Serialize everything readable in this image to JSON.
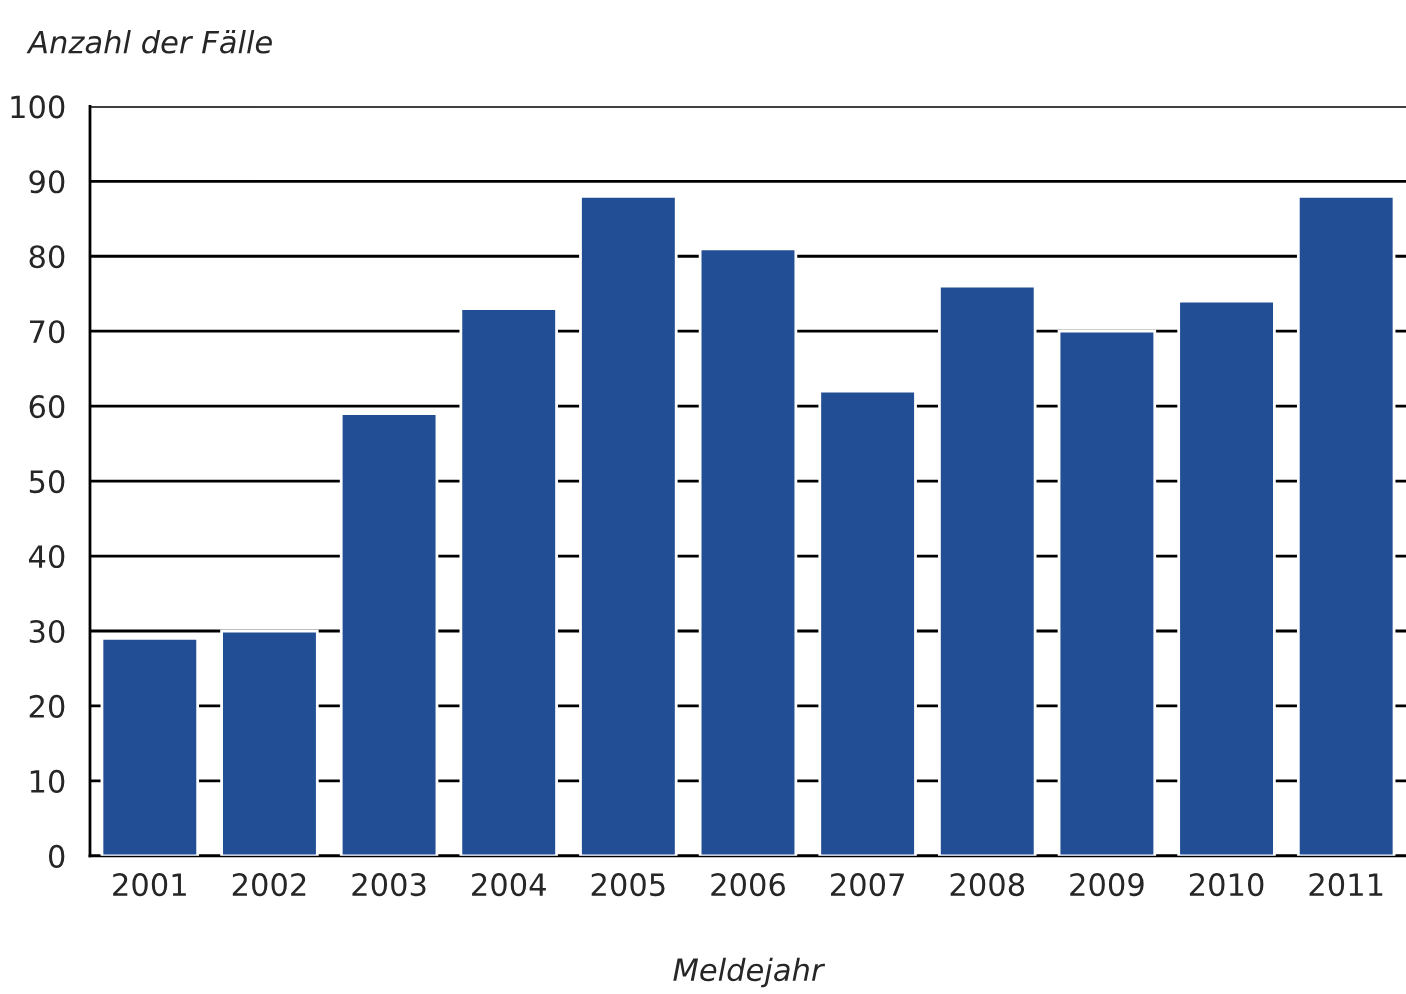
{
  "chart_data": {
    "type": "bar",
    "ylabel": "Anzahl der Fälle",
    "xlabel": "Meldejahr",
    "categories": [
      "2001",
      "2002",
      "2003",
      "2004",
      "2005",
      "2006",
      "2007",
      "2008",
      "2009",
      "2010",
      "2011"
    ],
    "values": [
      29,
      30,
      59,
      73,
      88,
      81,
      62,
      76,
      70,
      74,
      88
    ],
    "color": "#214e95",
    "ylim": [
      0,
      100
    ],
    "yticks": [
      0,
      10,
      20,
      30,
      40,
      50,
      60,
      70,
      80,
      90,
      100
    ],
    "grid": "y"
  }
}
